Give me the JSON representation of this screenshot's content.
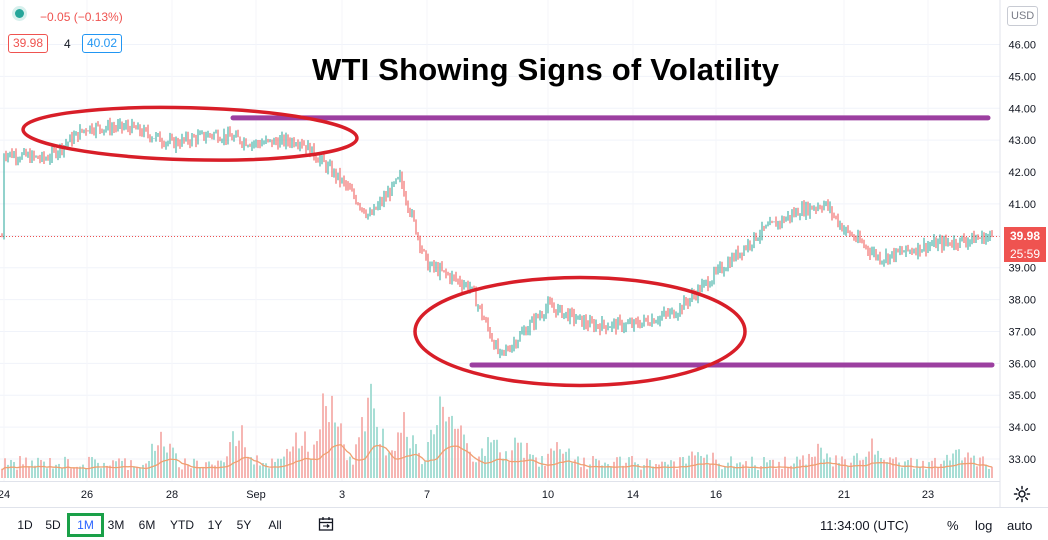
{
  "legend": {
    "change": "−0.05 (−0.13%)",
    "bid": "39.98",
    "spread": "4",
    "ask": "40.02"
  },
  "currency_label": "USD",
  "price_labels": {
    "current": "39.98",
    "countdown": "25:59"
  },
  "colors": {
    "up": "#26a69a",
    "down": "#ef5350",
    "ellipse": "#d81e28",
    "level_line": "#9c3fa0",
    "volume_ma": "#f0a070"
  },
  "bottom_bar": {
    "ranges": [
      "1D",
      "5D",
      "1M",
      "3M",
      "6M",
      "YTD",
      "1Y",
      "5Y",
      "All"
    ],
    "active_range": "1M",
    "clock": "11:34:00 (UTC)",
    "percent": "%",
    "log": "log",
    "auto": "auto"
  },
  "icons": [
    "calendar-range-icon",
    "gear-icon"
  ],
  "chart_data": {
    "type": "candlestick",
    "title": "WTI Showing Signs of Volatility",
    "currency": "USD",
    "ylim": [
      32.5,
      46.5
    ],
    "y_ticks": [
      33.0,
      34.0,
      35.0,
      36.0,
      37.0,
      38.0,
      39.0,
      40.0,
      41.0,
      42.0,
      43.0,
      44.0,
      45.0,
      46.0
    ],
    "x_ticks": [
      "24",
      "26",
      "28",
      "Sep",
      "3",
      "7",
      "10",
      "14",
      "16",
      "21",
      "23"
    ],
    "last_price": 39.98,
    "price_path": [
      {
        "x": "24",
        "y": 42.6
      },
      {
        "x": "25",
        "y": 42.4
      },
      {
        "x": "26",
        "y": 43.4
      },
      {
        "x": "27",
        "y": 43.4
      },
      {
        "x": "28",
        "y": 42.9
      },
      {
        "x": "31",
        "y": 43.2
      },
      {
        "x": "Sep",
        "y": 42.9
      },
      {
        "x": "2",
        "y": 43.0
      },
      {
        "x": "3",
        "y": 41.7
      },
      {
        "x": "4",
        "y": 40.6
      },
      {
        "x": "5",
        "y": 41.8
      },
      {
        "x": "7",
        "y": 39.1
      },
      {
        "x": "8",
        "y": 38.4
      },
      {
        "x": "9",
        "y": 36.2
      },
      {
        "x": "10",
        "y": 37.8
      },
      {
        "x": "11",
        "y": 37.2
      },
      {
        "x": "14",
        "y": 37.2
      },
      {
        "x": "15",
        "y": 37.6
      },
      {
        "x": "16",
        "y": 38.8
      },
      {
        "x": "17",
        "y": 40.1
      },
      {
        "x": "18",
        "y": 40.8
      },
      {
        "x": "19",
        "y": 41.0
      },
      {
        "x": "21",
        "y": 40.2
      },
      {
        "x": "22",
        "y": 39.3
      },
      {
        "x": "23",
        "y": 39.7
      },
      {
        "x": "24e",
        "y": 39.98
      }
    ],
    "annotations": {
      "resistance_level": 43.7,
      "support_level": 35.95,
      "ellipses": [
        {
          "x_from": "24",
          "x_to": "3",
          "y_center": 43.2
        },
        {
          "x_from": "7",
          "x_to": "16",
          "y_center": 37.0
        }
      ]
    },
    "volume": {
      "has_moving_average": true
    }
  }
}
